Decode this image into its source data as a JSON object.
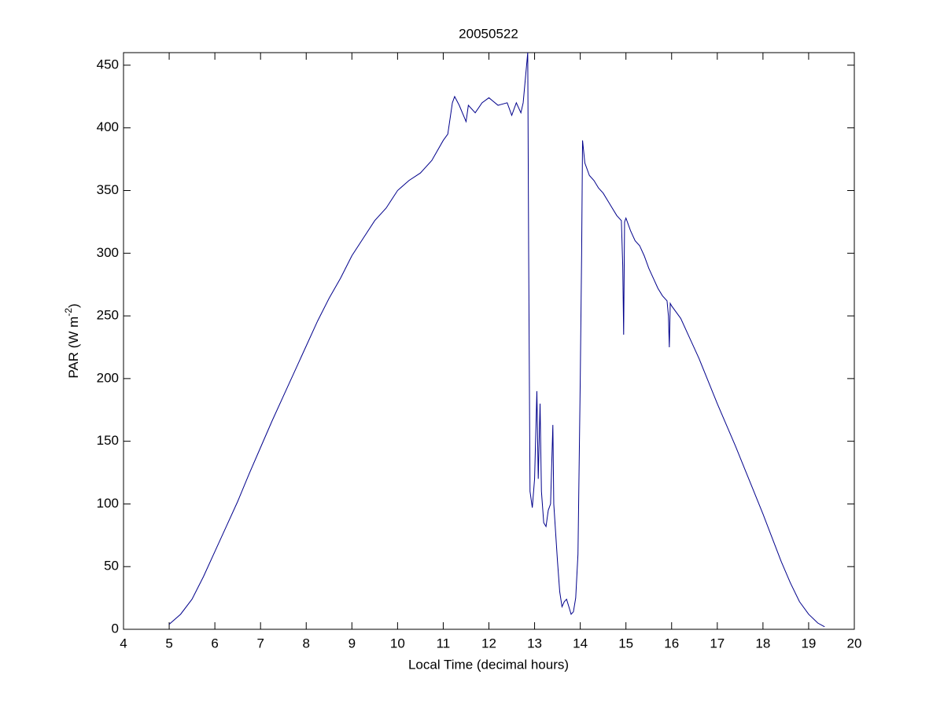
{
  "chart_data": {
    "type": "line",
    "title": "20050522",
    "xlabel": "Local Time (decimal hours)",
    "ylabel": [
      "PAR (W m",
      "-2",
      ")"
    ],
    "xlim": [
      4,
      20
    ],
    "ylim": [
      0,
      460
    ],
    "xticks": [
      4,
      5,
      6,
      7,
      8,
      9,
      10,
      11,
      12,
      13,
      14,
      15,
      16,
      17,
      18,
      19,
      20
    ],
    "yticks": [
      0,
      50,
      100,
      150,
      200,
      250,
      300,
      350,
      400,
      450
    ],
    "grid": false,
    "box": true,
    "x": [
      5.0,
      5.25,
      5.5,
      5.75,
      6.0,
      6.25,
      6.5,
      6.75,
      7.0,
      7.25,
      7.5,
      7.75,
      8.0,
      8.25,
      8.5,
      8.75,
      9.0,
      9.25,
      9.5,
      9.75,
      10.0,
      10.25,
      10.5,
      10.75,
      11.0,
      11.1,
      11.2,
      11.25,
      11.35,
      11.5,
      11.55,
      11.7,
      11.85,
      12.0,
      12.2,
      12.4,
      12.5,
      12.6,
      12.7,
      12.75,
      12.8,
      12.85,
      12.87,
      12.9,
      12.95,
      13.0,
      13.05,
      13.08,
      13.12,
      13.15,
      13.2,
      13.25,
      13.3,
      13.35,
      13.4,
      13.42,
      13.5,
      13.55,
      13.6,
      13.65,
      13.7,
      13.75,
      13.8,
      13.85,
      13.9,
      13.95,
      14.0,
      14.03,
      14.05,
      14.1,
      14.2,
      14.3,
      14.4,
      14.5,
      14.6,
      14.7,
      14.8,
      14.9,
      14.93,
      14.95,
      14.97,
      15.0,
      15.1,
      15.2,
      15.3,
      15.4,
      15.5,
      15.6,
      15.7,
      15.8,
      15.9,
      15.93,
      15.95,
      15.97,
      16.0,
      16.2,
      16.4,
      16.6,
      16.8,
      17.0,
      17.2,
      17.4,
      17.6,
      17.8,
      18.0,
      18.2,
      18.4,
      18.6,
      18.8,
      19.0,
      19.2,
      19.35
    ],
    "series": [
      {
        "color": "#00008b",
        "values": [
          4,
          12,
          24,
          42,
          62,
          82,
          102,
          124,
          145,
          166,
          186,
          206,
          226,
          246,
          264,
          280,
          298,
          312,
          326,
          336,
          350,
          358,
          364,
          374,
          390,
          395,
          420,
          425,
          418,
          405,
          418,
          412,
          420,
          424,
          418,
          420,
          410,
          420,
          412,
          420,
          440,
          460,
          300,
          110,
          97,
          120,
          190,
          120,
          180,
          110,
          85,
          82,
          95,
          100,
          163,
          100,
          55,
          30,
          18,
          22,
          24,
          18,
          12,
          14,
          25,
          60,
          200,
          300,
          390,
          372,
          362,
          358,
          352,
          348,
          342,
          336,
          330,
          326,
          290,
          235,
          325,
          328,
          318,
          310,
          306,
          298,
          288,
          280,
          272,
          266,
          262,
          250,
          225,
          260,
          258,
          248,
          232,
          216,
          198,
          180,
          163,
          146,
          128,
          110,
          92,
          73,
          54,
          37,
          22,
          12,
          5,
          2
        ]
      }
    ]
  }
}
